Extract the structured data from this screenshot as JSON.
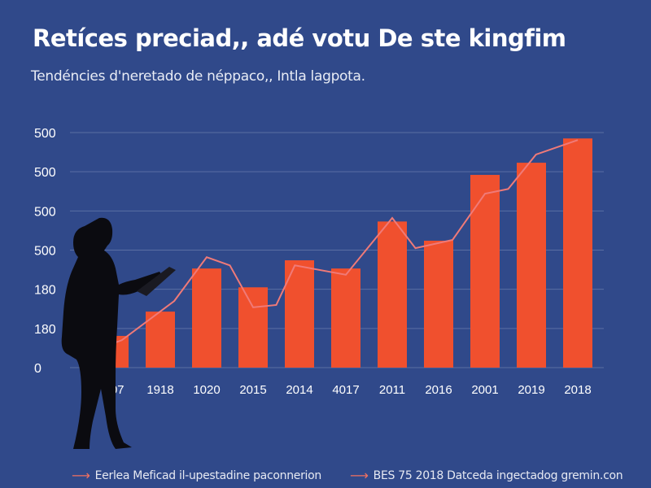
{
  "chart_data": {
    "type": "bar",
    "title": "Retíces preciad,, adé votu De ste kingfim",
    "subtitle": "Tendéncies d'neretado de néppaco,, Intla lagpota.",
    "categories": [
      "107",
      "1918",
      "1020",
      "2015",
      "2014",
      "4017",
      "2011",
      "2016",
      "2001",
      "2019",
      "2018"
    ],
    "y_tick_labels": [
      "0",
      "180",
      "180",
      "500",
      "500",
      "500",
      "500"
    ],
    "ylim": [
      0,
      600
    ],
    "grid": true,
    "values": [
      81,
      143,
      253,
      205,
      274,
      253,
      373,
      324,
      492,
      523,
      585
    ],
    "line": {
      "x_index": [
        -0.3,
        0.17,
        1.3,
        2.0,
        2.5,
        3.0,
        3.5,
        3.9,
        5.0,
        6.0,
        6.5,
        7.3,
        8.0,
        8.5,
        9.1,
        10.0
      ],
      "values": [
        50,
        70,
        170,
        282,
        261,
        154,
        160,
        261,
        237,
        382,
        305,
        326,
        444,
        456,
        544,
        581
      ]
    },
    "legend": [
      {
        "label": "Eerlea Meficad il-upestadine paconnerion"
      },
      {
        "label": "BES 75 2018 Datceda ingectadog gremin.con"
      }
    ],
    "legend_placement": "bottom",
    "colors": {
      "background": "#30498a",
      "bar": "#f0502e",
      "line": "#f07a78",
      "grid": "#5a6fa3",
      "silhouette": "#0b0b10"
    }
  }
}
